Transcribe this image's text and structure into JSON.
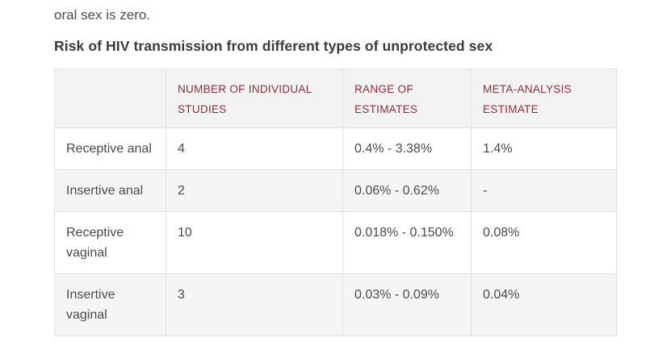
{
  "page": {
    "intro_text": "oral sex is zero.",
    "heading": "Risk of HIV transmission from different types of unprotected sex"
  },
  "table": {
    "headers": [
      "",
      "NUMBER OF INDIVIDUAL STUDIES",
      "RANGE OF ESTIMATES",
      "META-ANALYSIS ESTIMATE"
    ],
    "rows": [
      {
        "label": "Receptive anal",
        "studies": "4",
        "range": "0.4% - 3.38%",
        "meta": "1.4%"
      },
      {
        "label": "Insertive anal",
        "studies": "2",
        "range": "0.06% - 0.62%",
        "meta": "-"
      },
      {
        "label": "Receptive vaginal",
        "studies": "10",
        "range": "0.018% - 0.150%",
        "meta": "0.08%"
      },
      {
        "label": "Insertive vaginal",
        "studies": "3",
        "range": "0.03% - 0.09%",
        "meta": "0.04%"
      }
    ]
  },
  "colors": {
    "accent_maroon": "#93293a",
    "body_text": "#4a4a4a",
    "heading_text": "#3b3b3b",
    "border": "#e2e1e1",
    "header_bg": "#f4f3f3",
    "stripe_bg": "#f6f5f5",
    "page_bg": "#ffffff"
  }
}
